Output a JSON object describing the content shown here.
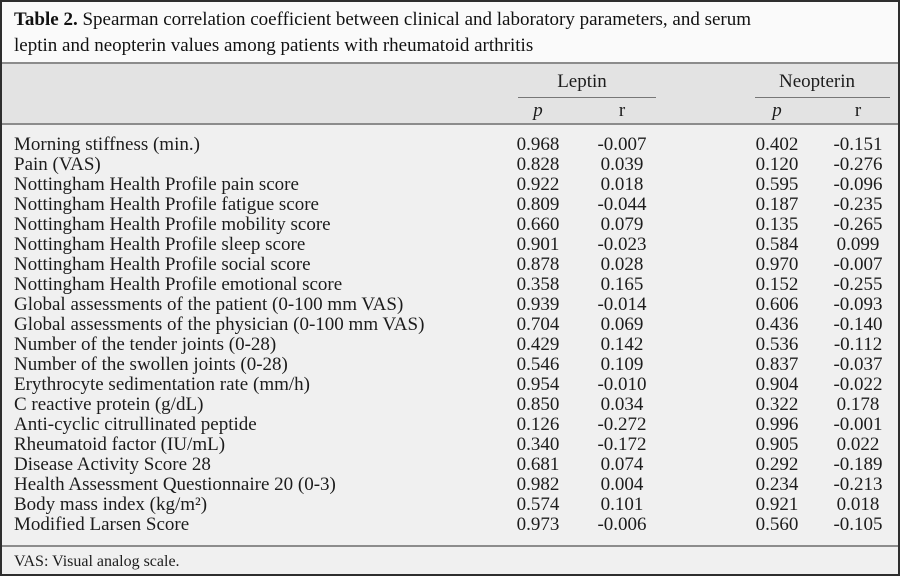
{
  "caption": {
    "label": "Table 2.",
    "line1": "Spearman correlation coefficient between clinical and laboratory parameters, and serum",
    "line2": "leptin and neopterin values among patients with rheumatoid arthritis"
  },
  "table": {
    "groups": [
      {
        "name": "Leptin"
      },
      {
        "name": "Neopterin"
      }
    ],
    "subheaders": {
      "p": "p",
      "r": "r"
    },
    "rows": [
      {
        "label": "Morning stiffness (min.)",
        "leptin_p": "0.968",
        "leptin_r": "-0.007",
        "neopterin_p": "0.402",
        "neopterin_r": "-0.151"
      },
      {
        "label": "Pain (VAS)",
        "leptin_p": "0.828",
        "leptin_r": "0.039",
        "neopterin_p": "0.120",
        "neopterin_r": "-0.276"
      },
      {
        "label": "Nottingham Health Profile pain score",
        "leptin_p": "0.922",
        "leptin_r": "0.018",
        "neopterin_p": "0.595",
        "neopterin_r": "-0.096"
      },
      {
        "label": "Nottingham Health Profile fatigue score",
        "leptin_p": "0.809",
        "leptin_r": "-0.044",
        "neopterin_p": "0.187",
        "neopterin_r": "-0.235"
      },
      {
        "label": "Nottingham Health Profile mobility score",
        "leptin_p": "0.660",
        "leptin_r": "0.079",
        "neopterin_p": "0.135",
        "neopterin_r": "-0.265"
      },
      {
        "label": "Nottingham Health Profile sleep score",
        "leptin_p": "0.901",
        "leptin_r": "-0.023",
        "neopterin_p": "0.584",
        "neopterin_r": "0.099"
      },
      {
        "label": "Nottingham Health Profile social score",
        "leptin_p": "0.878",
        "leptin_r": "0.028",
        "neopterin_p": "0.970",
        "neopterin_r": "-0.007"
      },
      {
        "label": "Nottingham Health Profile emotional score",
        "leptin_p": "0.358",
        "leptin_r": "0.165",
        "neopterin_p": "0.152",
        "neopterin_r": "-0.255"
      },
      {
        "label": "Global assessments of the patient (0-100 mm VAS)",
        "leptin_p": "0.939",
        "leptin_r": "-0.014",
        "neopterin_p": "0.606",
        "neopterin_r": "-0.093"
      },
      {
        "label": "Global assessments of the physician (0-100 mm VAS)",
        "leptin_p": "0.704",
        "leptin_r": "0.069",
        "neopterin_p": "0.436",
        "neopterin_r": "-0.140"
      },
      {
        "label": "Number of the tender joints (0-28)",
        "leptin_p": "0.429",
        "leptin_r": "0.142",
        "neopterin_p": "0.536",
        "neopterin_r": "-0.112"
      },
      {
        "label": "Number of the swollen joints (0-28)",
        "leptin_p": "0.546",
        "leptin_r": "0.109",
        "neopterin_p": "0.837",
        "neopterin_r": "-0.037"
      },
      {
        "label": "Erythrocyte sedimentation rate (mm/h)",
        "leptin_p": "0.954",
        "leptin_r": "-0.010",
        "neopterin_p": "0.904",
        "neopterin_r": "-0.022"
      },
      {
        "label": "C reactive protein (g/dL)",
        "leptin_p": "0.850",
        "leptin_r": "0.034",
        "neopterin_p": "0.322",
        "neopterin_r": "0.178"
      },
      {
        "label": "Anti-cyclic citrullinated peptide",
        "leptin_p": "0.126",
        "leptin_r": "-0.272",
        "neopterin_p": "0.996",
        "neopterin_r": "-0.001"
      },
      {
        "label": "Rheumatoid factor (IU/mL)",
        "leptin_p": "0.340",
        "leptin_r": "-0.172",
        "neopterin_p": "0.905",
        "neopterin_r": "0.022"
      },
      {
        "label": "Disease Activity Score 28",
        "leptin_p": "0.681",
        "leptin_r": "0.074",
        "neopterin_p": "0.292",
        "neopterin_r": "-0.189"
      },
      {
        "label": "Health Assessment Questionnaire 20 (0-3)",
        "leptin_p": "0.982",
        "leptin_r": "0.004",
        "neopterin_p": "0.234",
        "neopterin_r": "-0.213"
      },
      {
        "label": "Body mass index (kg/m²)",
        "leptin_p": "0.574",
        "leptin_r": "0.101",
        "neopterin_p": "0.921",
        "neopterin_r": "0.018"
      },
      {
        "label": "Modified Larsen Score",
        "leptin_p": "0.973",
        "leptin_r": "-0.006",
        "neopterin_p": "0.560",
        "neopterin_r": "-0.105"
      }
    ]
  },
  "footnote": "VAS: Visual analog scale.",
  "colors": {
    "outer_border": "#2e2e2e",
    "caption_bg": "#fafafa",
    "header_bg": "#e3e3e3",
    "body_bg": "#f0f0f0",
    "separator_line": "#8c8c8c",
    "group_underline": "#777777",
    "text": "#1c1c1c"
  }
}
